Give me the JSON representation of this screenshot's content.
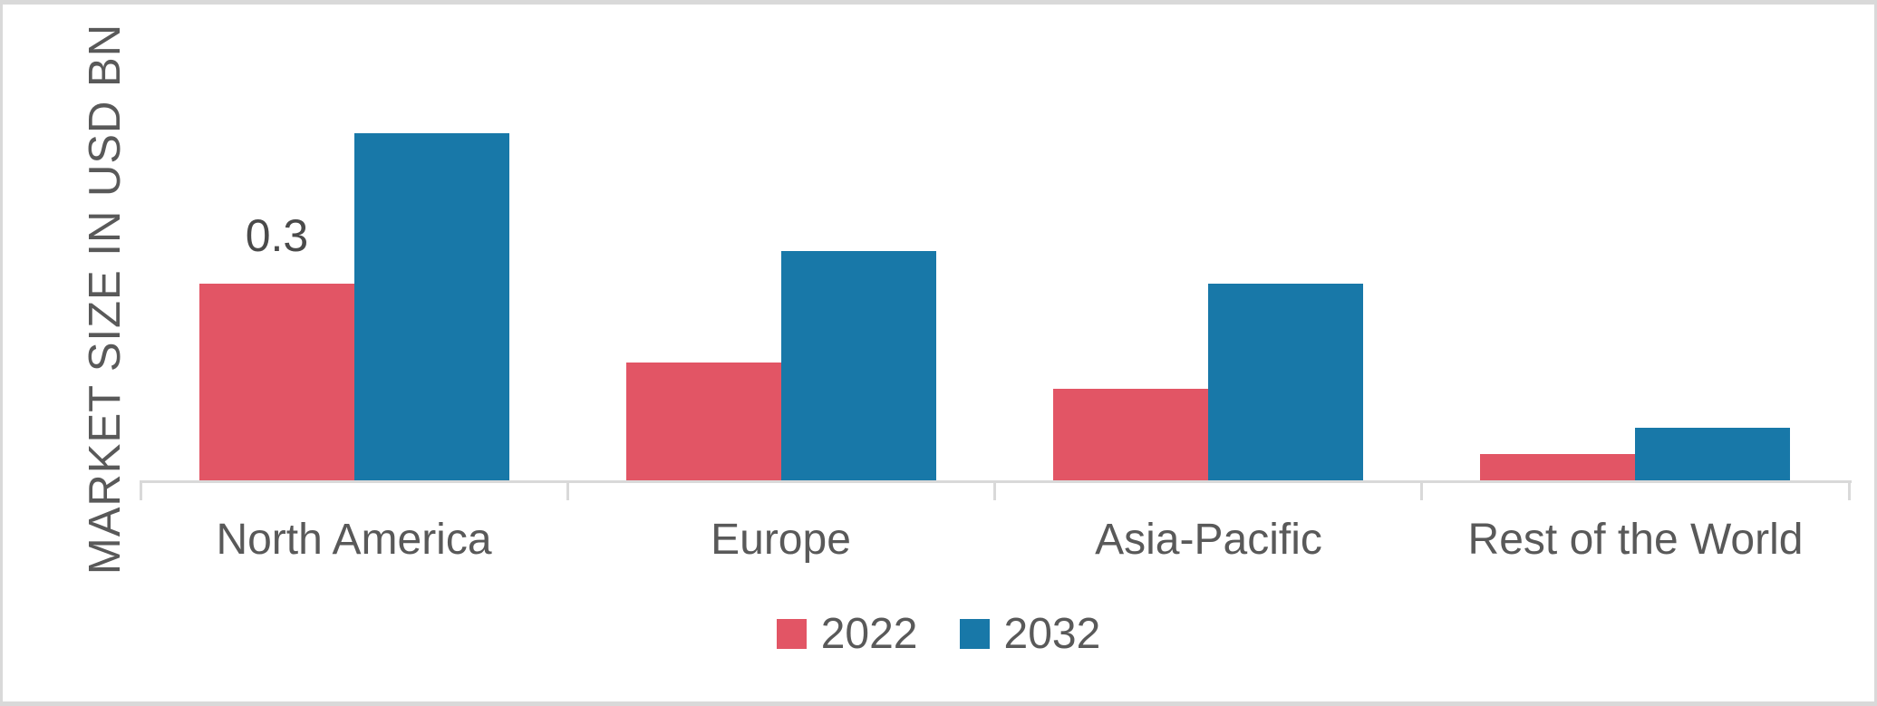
{
  "figure": {
    "background": "#ffffff",
    "frame_color": "#d9d9d9",
    "text_color": "#595959"
  },
  "chart_data": {
    "type": "bar",
    "title": "",
    "xlabel": "",
    "ylabel": "MARKET SIZE IN USD BN",
    "categories": [
      "North America",
      "Europe",
      "Asia-Pacific",
      "Rest of the World"
    ],
    "series": [
      {
        "name": "2022",
        "color": "#e25565",
        "values": [
          0.3,
          0.18,
          0.14,
          0.04
        ],
        "data_labels": [
          "0.3",
          "",
          "",
          ""
        ]
      },
      {
        "name": "2032",
        "color": "#1878a8",
        "values": [
          0.53,
          0.35,
          0.3,
          0.08
        ],
        "data_labels": [
          "",
          "",
          "",
          ""
        ]
      }
    ],
    "ylim": [
      0,
      0.55
    ],
    "grid": false,
    "y_tick_labels_visible": false,
    "axis_color": "#d9d9d9",
    "legend_position": "bottom"
  },
  "legend": {
    "items": [
      {
        "label": "2022",
        "color": "#e25565"
      },
      {
        "label": "2032",
        "color": "#1878a8"
      }
    ]
  }
}
